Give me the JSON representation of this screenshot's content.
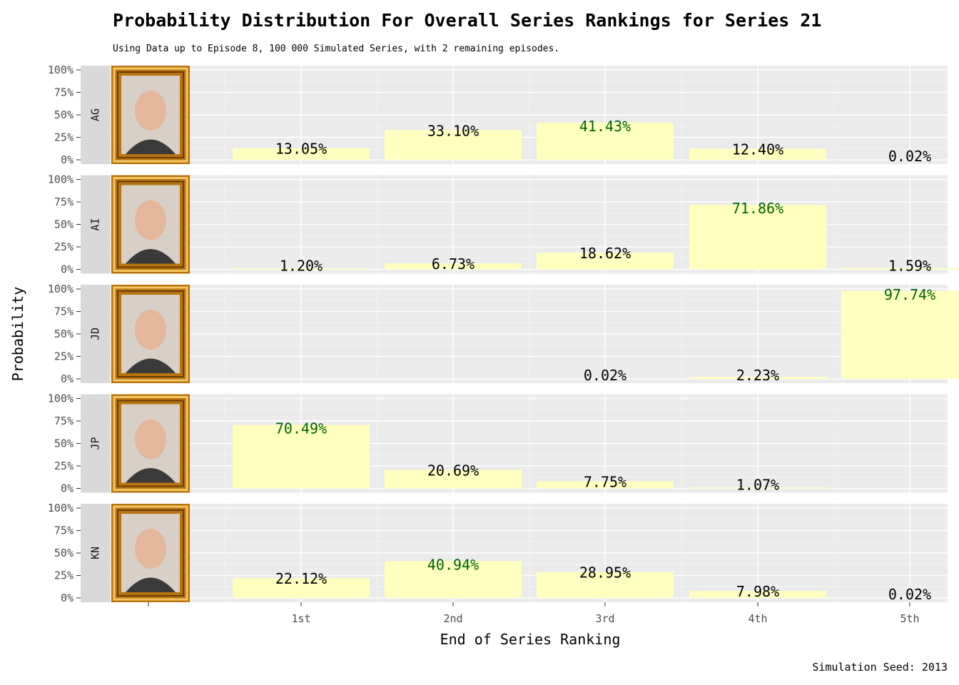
{
  "chart_data": {
    "type": "bar",
    "title": "Probability Distribution For Overall Series Rankings for Series 21",
    "subtitle": "Using Data up to Episode 8, 100 000 Simulated Series, with 2 remaining episodes.",
    "xlabel": "End of Series Ranking",
    "ylabel": "Probability",
    "caption": "Simulation Seed: 2013",
    "categories": [
      "1st",
      "2nd",
      "3rd",
      "4th",
      "5th"
    ],
    "yticks": [
      "0%",
      "25%",
      "50%",
      "75%",
      "100%"
    ],
    "ylim": [
      0,
      1
    ],
    "grid": true,
    "bar_color": "#ffffc0",
    "highlight_color": "#006400",
    "label_color": "#000000",
    "panel_bg": "#ebebeb",
    "strip_bg": "#d9d9d9",
    "facets": [
      {
        "strip": "AG",
        "values": [
          0.1305,
          0.331,
          0.4143,
          0.124,
          0.0002
        ],
        "labels": [
          "13.05%",
          "33.10%",
          "41.43%",
          "12.40%",
          "0.02%"
        ]
      },
      {
        "strip": "AI",
        "values": [
          0.012,
          0.0673,
          0.1862,
          0.7186,
          0.0159
        ],
        "labels": [
          "1.20%",
          "6.73%",
          "18.62%",
          "71.86%",
          "1.59%"
        ]
      },
      {
        "strip": "JD",
        "values": [
          0,
          0,
          0.0002,
          0.0223,
          0.9774
        ],
        "labels": [
          "",
          "",
          "0.02%",
          "2.23%",
          "97.74%"
        ]
      },
      {
        "strip": "JP",
        "values": [
          0.7049,
          0.2069,
          0.0775,
          0.0107,
          0
        ],
        "labels": [
          "70.49%",
          "20.69%",
          "7.75%",
          "1.07%",
          ""
        ]
      },
      {
        "strip": "KN",
        "values": [
          0.2212,
          0.4094,
          0.2895,
          0.0798,
          0.0002
        ],
        "labels": [
          "22.12%",
          "40.94%",
          "28.95%",
          "7.98%",
          "0.02%"
        ]
      }
    ]
  }
}
